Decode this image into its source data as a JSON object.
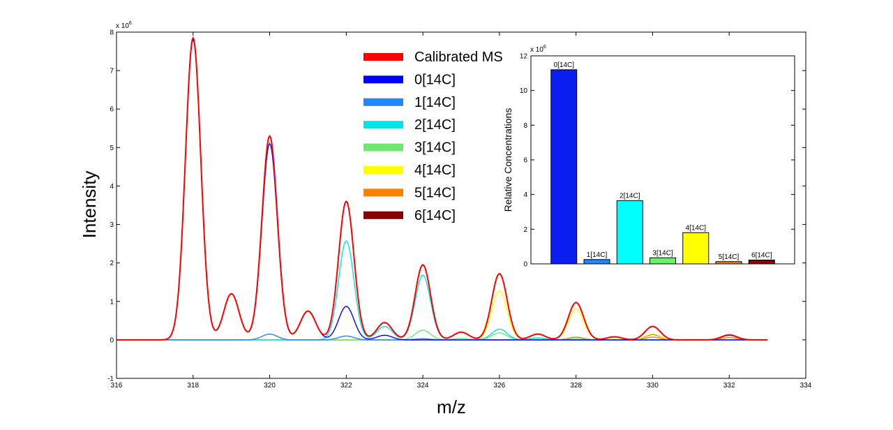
{
  "chart_data": [
    {
      "type": "line",
      "xlabel": "m/z",
      "ylabel": "Intensity",
      "y_exponent": "x 10",
      "y_exponent_power": "6",
      "xlim": [
        316,
        334
      ],
      "ylim": [
        -1,
        8
      ],
      "xticks": [
        "316",
        "318",
        "320",
        "322",
        "324",
        "326",
        "328",
        "330",
        "332",
        "334"
      ],
      "yticks": [
        "-1",
        "0",
        "1",
        "2",
        "3",
        "4",
        "5",
        "6",
        "7",
        "8"
      ],
      "grid": false,
      "legend_position": "top-center",
      "series": [
        {
          "name": "Calibrated MS",
          "color": "#ff0000",
          "peaks": [
            [
              318,
              7.85
            ],
            [
              319,
              1.2
            ],
            [
              320,
              5.3
            ],
            [
              321,
              0.75
            ],
            [
              322,
              3.6
            ],
            [
              323,
              0.45
            ],
            [
              324,
              1.95
            ],
            [
              325,
              0.2
            ],
            [
              326,
              1.72
            ],
            [
              327,
              0.15
            ],
            [
              328,
              0.97
            ],
            [
              329,
              0.08
            ],
            [
              330,
              0.35
            ],
            [
              332,
              0.13
            ]
          ]
        },
        {
          "name": "0[14C]",
          "color": "#0000ff",
          "peaks": [
            [
              318,
              7.8
            ],
            [
              319,
              1.2
            ],
            [
              320,
              5.1
            ],
            [
              321,
              0.75
            ],
            [
              322,
              0.87
            ],
            [
              323,
              0.12
            ]
          ]
        },
        {
          "name": "1[14C]",
          "color": "#1e88ff",
          "peaks": [
            [
              320,
              0.15
            ],
            [
              322,
              0.1
            ],
            [
              324,
              0.03
            ]
          ]
        },
        {
          "name": "2[14C]",
          "color": "#00e5e5",
          "peaks": [
            [
              322,
              2.57
            ],
            [
              323,
              0.35
            ],
            [
              324,
              1.68
            ],
            [
              325,
              0.2
            ],
            [
              326,
              0.28
            ],
            [
              327,
              0.05
            ]
          ]
        },
        {
          "name": "3[14C]",
          "color": "#6ee86e",
          "peaks": [
            [
              324,
              0.25
            ],
            [
              325,
              0.04
            ],
            [
              326,
              0.18
            ],
            [
              327,
              0.05
            ],
            [
              328,
              0.04
            ]
          ]
        },
        {
          "name": "4[14C]",
          "color": "#ffff00",
          "peaks": [
            [
              326,
              1.28
            ],
            [
              327,
              0.15
            ],
            [
              328,
              0.8
            ],
            [
              329,
              0.06
            ],
            [
              330,
              0.15
            ],
            [
              331,
              0.02
            ]
          ]
        },
        {
          "name": "5[14C]",
          "color": "#ff7f00",
          "peaks": [
            [
              328,
              0.07
            ],
            [
              330,
              0.07
            ],
            [
              332,
              0.06
            ]
          ]
        },
        {
          "name": "6[14C]",
          "color": "#8b0000",
          "peaks": [
            [
              330,
              0.14
            ],
            [
              332,
              0.12
            ]
          ]
        }
      ]
    },
    {
      "type": "bar",
      "ylabel": "Relative Concentrations",
      "y_exponent": "x 10",
      "y_exponent_power": "6",
      "ylim": [
        0,
        12
      ],
      "yticks": [
        "0",
        "2",
        "4",
        "6",
        "8",
        "10",
        "12"
      ],
      "grid": false,
      "categories": [
        "0[14C]",
        "1[14C]",
        "2[14C]",
        "3[14C]",
        "4[14C]",
        "5[14C]",
        "6[14C]"
      ],
      "values": [
        11.2,
        0.25,
        3.65,
        0.35,
        1.8,
        0.13,
        0.22
      ],
      "colors": [
        "#0a1ef0",
        "#1e88ff",
        "#00ffff",
        "#6ef06e",
        "#ffff00",
        "#ff7f00",
        "#8b0000"
      ]
    }
  ]
}
